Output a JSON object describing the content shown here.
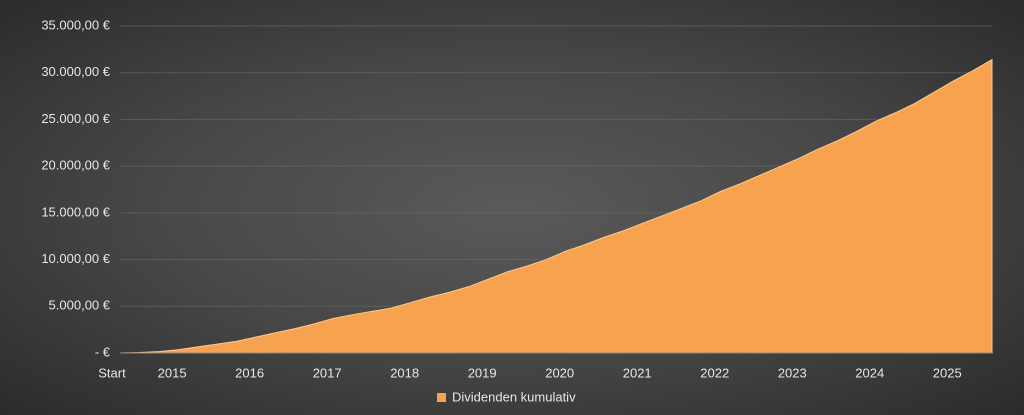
{
  "chart_data": {
    "type": "area",
    "categories": [
      "Start",
      null,
      null,
      "2015",
      null,
      null,
      null,
      "2016",
      null,
      null,
      null,
      "2017",
      null,
      null,
      null,
      "2018",
      null,
      null,
      null,
      "2019",
      null,
      null,
      null,
      "2020",
      null,
      null,
      null,
      "2021",
      null,
      null,
      null,
      "2022",
      null,
      null,
      null,
      "2023",
      null,
      null,
      null,
      "2024",
      null,
      null,
      null,
      "2025",
      null,
      null
    ],
    "series": [
      {
        "name": "Dividenden kumulativ",
        "color": "#f7a24f",
        "values": [
          0,
          50,
          150,
          350,
          650,
          950,
          1250,
          1700,
          2150,
          2600,
          3100,
          3700,
          4100,
          4450,
          4800,
          5400,
          6000,
          6500,
          7100,
          7900,
          8700,
          9300,
          10000,
          10900,
          11600,
          12400,
          13100,
          13900,
          14700,
          15500,
          16300,
          17300,
          18100,
          19000,
          19900,
          20800,
          21800,
          22700,
          23700,
          24800,
          25700,
          26700,
          27900,
          29100,
          30200,
          31400
        ]
      }
    ],
    "ylim": [
      0,
      35000
    ],
    "yticks": [
      {
        "value": 0,
        "label": "-   €"
      },
      {
        "value": 5000,
        "label": "5.000,00 €"
      },
      {
        "value": 10000,
        "label": "10.000,00 €"
      },
      {
        "value": 15000,
        "label": "15.000,00 €"
      },
      {
        "value": 20000,
        "label": "20.000,00 €"
      },
      {
        "value": 25000,
        "label": "25.000,00 €"
      },
      {
        "value": 30000,
        "label": "30.000,00 €"
      },
      {
        "value": 35000,
        "label": "35.000,00 €"
      }
    ],
    "grid": true,
    "legend": "bottom"
  }
}
